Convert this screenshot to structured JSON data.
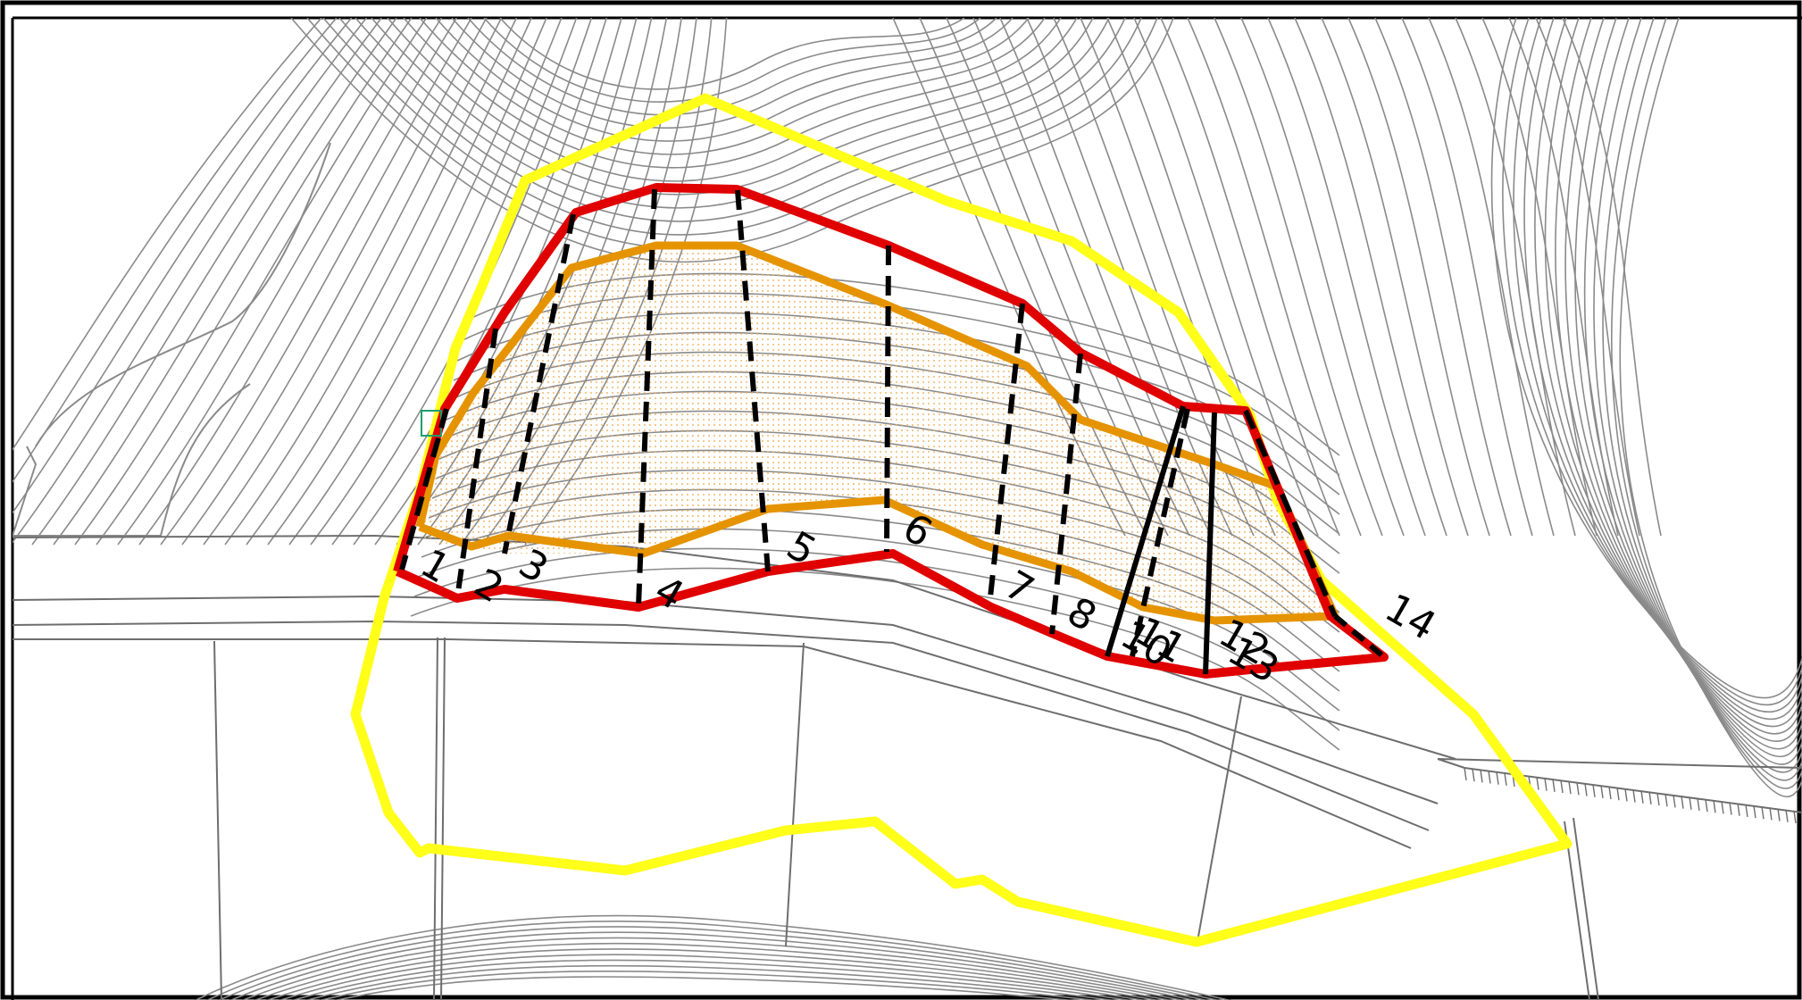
{
  "map": {
    "colors": {
      "background": "#ffffff",
      "frame": "#000000",
      "contour": "#8a8a8a",
      "contour_dense": "#a0a0a0",
      "road": "#6e6e6e",
      "outer_boundary": "#ffff1a",
      "landslide_boundary": "#e00000",
      "inner_boundary": "#e59400",
      "hatch_fill": "#f5c98a",
      "section_line": "#000000",
      "survey_marker": "#1a9e6e"
    },
    "sections": [
      {
        "id": "s1",
        "label": "1"
      },
      {
        "id": "s2",
        "label": "2"
      },
      {
        "id": "s3",
        "label": "3"
      },
      {
        "id": "s4",
        "label": "4"
      },
      {
        "id": "s5",
        "label": "5"
      },
      {
        "id": "s6",
        "label": "6"
      },
      {
        "id": "s7",
        "label": "7"
      },
      {
        "id": "s8",
        "label": "8"
      },
      {
        "id": "s9",
        "label": "10"
      },
      {
        "id": "s10",
        "label": "11"
      },
      {
        "id": "s11",
        "label": "12"
      },
      {
        "id": "s12",
        "label": "13"
      },
      {
        "id": "s13",
        "label": "14"
      }
    ]
  }
}
